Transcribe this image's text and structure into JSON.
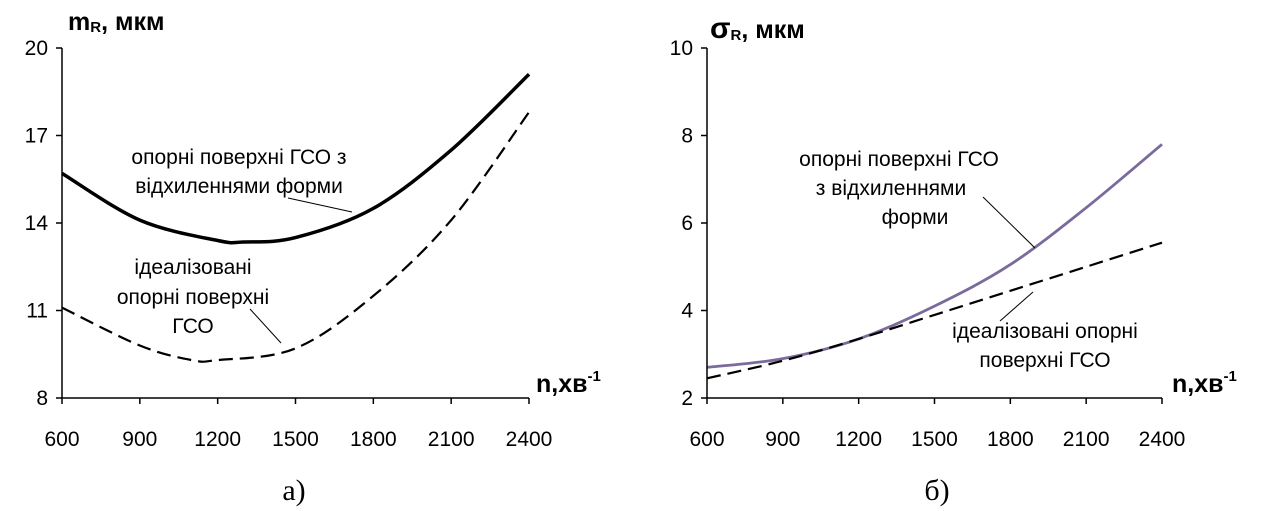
{
  "chart_data": [
    {
      "type": "line",
      "caption": "а)",
      "ylabel_main": "m",
      "ylabel_sub": "R",
      "ylabel_unit": ",  мкм",
      "xlabel_main": "n,хв",
      "xlabel_sup": "-1",
      "xlim": [
        600,
        2400
      ],
      "ylim": [
        8,
        20
      ],
      "xticks": [
        600,
        900,
        1200,
        1500,
        1800,
        2100,
        2400
      ],
      "yticks": [
        8,
        11,
        14,
        17,
        20
      ],
      "grid": false,
      "series": [
        {
          "style": "solid",
          "color": "#000000",
          "x": [
            600,
            900,
            1200,
            1300,
            1500,
            1800,
            2100,
            2400
          ],
          "y": [
            15.7,
            14.1,
            13.4,
            13.35,
            13.5,
            14.5,
            16.5,
            19.1
          ]
        },
        {
          "style": "dashed",
          "color": "#000000",
          "x": [
            600,
            900,
            1100,
            1200,
            1500,
            1800,
            2100,
            2400
          ],
          "y": [
            11.1,
            9.8,
            9.3,
            9.3,
            9.7,
            11.5,
            14.1,
            17.8
          ]
        }
      ],
      "annotations": [
        {
          "lines": [
            "опорні поверхні ГСО з",
            "відхиленнями форми"
          ]
        },
        {
          "lines": [
            "ідеалізовані",
            "опорні поверхні",
            "ГСО"
          ]
        }
      ]
    },
    {
      "type": "line",
      "caption": "б)",
      "ylabel_main": "σ",
      "ylabel_sub": "R",
      "ylabel_unit": ", мкм",
      "xlabel_main": "n,хв",
      "xlabel_sup": "-1",
      "xlim": [
        600,
        2400
      ],
      "ylim": [
        2,
        10
      ],
      "xticks": [
        600,
        900,
        1200,
        1500,
        1800,
        2100,
        2400
      ],
      "yticks": [
        2,
        4,
        6,
        8,
        10
      ],
      "grid": false,
      "series": [
        {
          "style": "solid",
          "color": "#7b6a9c",
          "x": [
            600,
            900,
            1200,
            1500,
            1800,
            2100,
            2400
          ],
          "y": [
            2.7,
            2.9,
            3.35,
            4.1,
            5.05,
            6.35,
            7.8
          ]
        },
        {
          "style": "dashed",
          "color": "#000000",
          "x": [
            600,
            900,
            1200,
            1500,
            1800,
            2100,
            2400
          ],
          "y": [
            2.45,
            2.85,
            3.35,
            3.9,
            4.45,
            5.0,
            5.55
          ]
        }
      ],
      "annotations": [
        {
          "lines": [
            "опорні поверхні ГСО",
            "з  відхиленнями",
            "форми"
          ]
        },
        {
          "lines": [
            "ідеалізовані  опорні",
            "поверхні ГСО"
          ]
        }
      ]
    }
  ]
}
